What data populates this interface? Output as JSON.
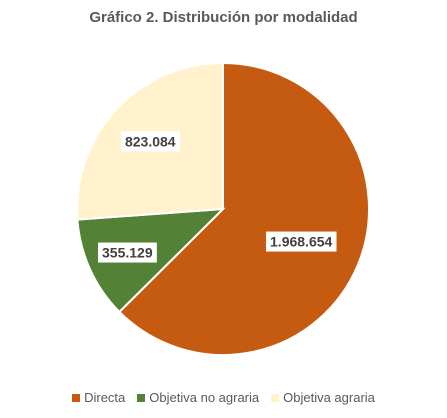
{
  "chart_data": {
    "type": "pie",
    "title": "Gráfico 2. Distribución por modalidad",
    "categories": [
      "Directa",
      "Objetiva no agraria",
      "Objetiva agraria"
    ],
    "values": [
      1968654,
      355129,
      823084
    ],
    "data_labels": [
      "1.968.654",
      "355.129",
      "823.084"
    ],
    "colors": [
      "#c55a11",
      "#538135",
      "#fff2cc"
    ],
    "start_angle_deg": 0,
    "direction": "clockwise",
    "legend_position": "bottom"
  }
}
